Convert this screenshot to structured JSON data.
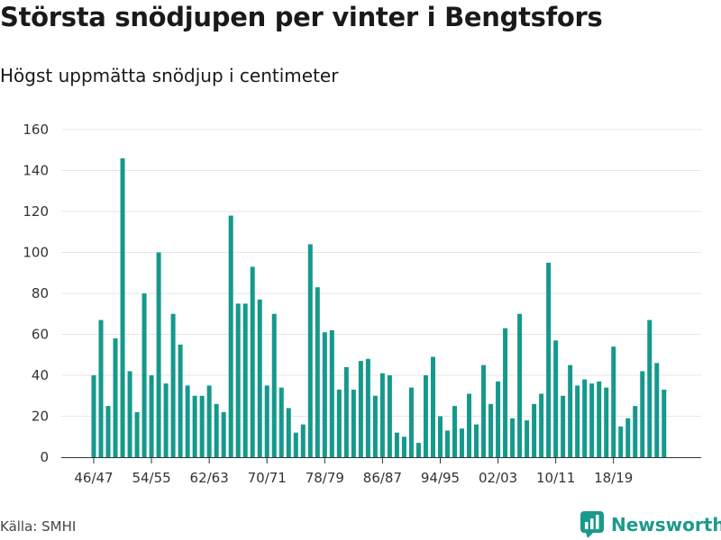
{
  "chart_data": {
    "type": "bar",
    "title": "Största snödjupen per vinter i Bengtsfors",
    "subtitle": "Högst uppmätta snödjup i centimeter",
    "xlabel": "",
    "ylabel": "",
    "ylim": [
      0,
      160
    ],
    "yticks": [
      0,
      20,
      40,
      60,
      80,
      100,
      120,
      140,
      160
    ],
    "categories": [
      "46/47",
      "47/48",
      "48/49",
      "49/50",
      "50/51",
      "51/52",
      "52/53",
      "53/54",
      "54/55",
      "55/56",
      "56/57",
      "57/58",
      "58/59",
      "59/60",
      "60/61",
      "61/62",
      "62/63",
      "63/64",
      "64/65",
      "65/66",
      "66/67",
      "67/68",
      "68/69",
      "69/70",
      "70/71",
      "71/72",
      "72/73",
      "73/74",
      "74/75",
      "75/76",
      "76/77",
      "77/78",
      "78/79",
      "79/80",
      "80/81",
      "81/82",
      "82/83",
      "83/84",
      "84/85",
      "85/86",
      "86/87",
      "87/88",
      "88/89",
      "89/90",
      "90/91",
      "91/92",
      "92/93",
      "93/94",
      "94/95",
      "95/96",
      "96/97",
      "97/98",
      "98/99",
      "99/00",
      "00/01",
      "01/02",
      "02/03",
      "03/04",
      "04/05",
      "05/06",
      "06/07",
      "07/08",
      "08/09",
      "09/10",
      "10/11",
      "11/12",
      "12/13",
      "13/14",
      "14/15",
      "15/16",
      "16/17",
      "17/18",
      "18/19",
      "19/20",
      "20/21",
      "21/22",
      "22/23",
      "23/24",
      "24/25",
      "25/26"
    ],
    "values": [
      40,
      67,
      25,
      58,
      146,
      42,
      22,
      80,
      40,
      100,
      36,
      70,
      55,
      35,
      30,
      30,
      35,
      26,
      22,
      118,
      75,
      75,
      93,
      77,
      35,
      70,
      34,
      24,
      12,
      16,
      104,
      83,
      61,
      62,
      33,
      44,
      33,
      47,
      48,
      30,
      41,
      40,
      12,
      10,
      34,
      7,
      40,
      49,
      20,
      13,
      25,
      14,
      31,
      16,
      45,
      26,
      37,
      63,
      19,
      70,
      18,
      26,
      31,
      95,
      57,
      30,
      45,
      35,
      38,
      36,
      37,
      34,
      54,
      15,
      19,
      25,
      42,
      67,
      46,
      33
    ],
    "xtick_labels": [
      "46/47",
      "54/55",
      "62/63",
      "70/71",
      "78/79",
      "86/87",
      "94/95",
      "02/03",
      "10/11",
      "18/19"
    ],
    "bar_color": "#15998c",
    "grid": true
  },
  "source": "Källa: SMHI",
  "brand": "Newsworthy",
  "brand_color": "#1a9a8c"
}
